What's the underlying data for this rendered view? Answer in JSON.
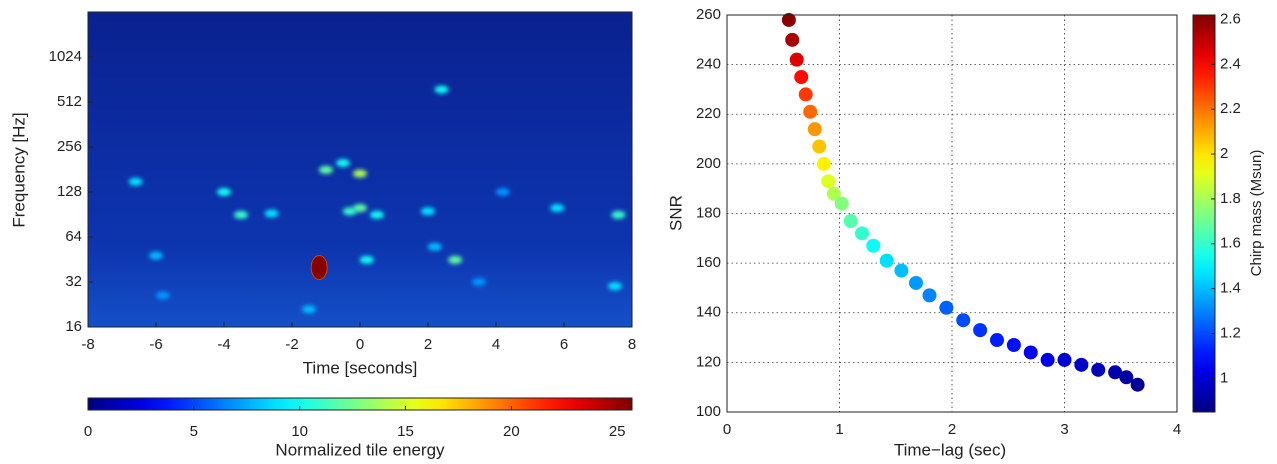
{
  "chart_data": [
    {
      "type": "spectrogram",
      "xlabel": "Time [seconds]",
      "ylabel": "Frequency [Hz]",
      "xlim": [
        -8,
        8
      ],
      "xticks": [
        -8,
        -6,
        -4,
        -2,
        0,
        2,
        4,
        6,
        8
      ],
      "ylim": [
        16,
        2048
      ],
      "log_y": true,
      "yticks": [
        16,
        32,
        64,
        128,
        256,
        512,
        1024
      ],
      "colormap": "jet",
      "colorbar": {
        "label": "Normalized tile energy",
        "lim": [
          0,
          25.7
        ],
        "ticks": [
          0,
          5,
          10,
          15,
          20,
          25
        ]
      },
      "tiles": {
        "x": [
          -1.2,
          -1.5,
          -1.0,
          -0.5,
          0,
          0,
          -0.3,
          0.5,
          2.8,
          -3.5,
          7.6,
          5.8,
          -6.6,
          -4.0,
          2.4,
          7.5,
          -6.0,
          0.2,
          -2.6,
          2.2,
          -5.8,
          3.5,
          4.2,
          2.0
        ],
        "y": [
          40,
          21,
          180,
          200,
          170,
          100,
          95,
          90,
          45,
          90,
          90,
          100,
          150,
          128,
          620,
          30,
          48,
          45,
          92,
          55,
          26,
          32,
          128,
          95
        ],
        "values": [
          25.5,
          8,
          12,
          10,
          14,
          12,
          11,
          10,
          12,
          11,
          11,
          9,
          9,
          10,
          10,
          9,
          8,
          10,
          9,
          8,
          7,
          7,
          7,
          9
        ]
      }
    },
    {
      "type": "scatter",
      "xlabel": "Time−lag (sec)",
      "ylabel": "SNR",
      "xlim": [
        0,
        4
      ],
      "xticks": [
        0,
        1,
        2,
        3,
        4
      ],
      "ylim": [
        100,
        260
      ],
      "yticks": [
        100,
        120,
        140,
        160,
        180,
        200,
        220,
        240,
        260
      ],
      "grid": true,
      "colormap": "jet",
      "colorbar": {
        "label": "Chirp mass (Msun)",
        "lim": [
          0.85,
          2.62
        ],
        "ticks": [
          1,
          1.2,
          1.4,
          1.6,
          1.8,
          2,
          2.2,
          2.4,
          2.6
        ]
      },
      "x": [
        0.55,
        0.58,
        0.62,
        0.66,
        0.7,
        0.74,
        0.78,
        0.82,
        0.86,
        0.9,
        0.95,
        1.02,
        1.1,
        1.2,
        1.3,
        1.42,
        1.55,
        1.68,
        1.8,
        1.95,
        2.1,
        2.25,
        2.4,
        2.55,
        2.7,
        2.85,
        3.0,
        3.15,
        3.3,
        3.45,
        3.55,
        3.65
      ],
      "values": [
        258,
        250,
        242,
        235,
        228,
        221,
        214,
        207,
        200,
        193,
        188,
        184,
        177,
        172,
        167,
        161,
        157,
        152,
        147,
        142,
        137,
        133,
        129,
        127,
        124,
        121,
        121,
        119,
        117,
        116,
        114,
        111
      ],
      "color_values": [
        2.6,
        2.55,
        2.45,
        2.38,
        2.3,
        2.22,
        2.14,
        2.06,
        1.98,
        1.9,
        1.82,
        1.74,
        1.66,
        1.6,
        1.52,
        1.46,
        1.4,
        1.34,
        1.3,
        1.24,
        1.2,
        1.16,
        1.12,
        1.1,
        1.06,
        1.03,
        1.0,
        0.98,
        0.95,
        0.93,
        0.91,
        0.89
      ]
    }
  ]
}
